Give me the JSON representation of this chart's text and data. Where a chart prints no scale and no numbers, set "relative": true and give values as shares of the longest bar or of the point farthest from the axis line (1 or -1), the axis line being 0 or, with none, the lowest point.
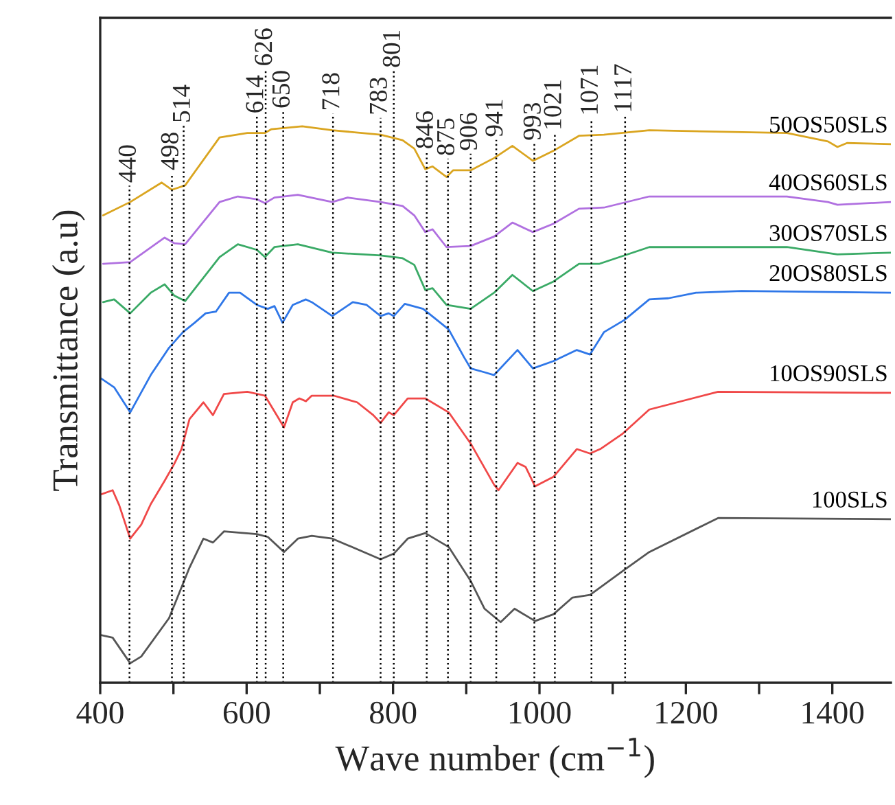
{
  "chart_data": {
    "type": "line",
    "relative": true,
    "xlabel": "Wave number (cm$^{−1}$)",
    "ylabel": "Transmittance (a.u)",
    "xlim": [
      400,
      1480
    ],
    "xticks": [
      400,
      {
        "value": 500,
        "label": null
      },
      600,
      {
        "value": 700,
        "label": null
      },
      800,
      {
        "value": 900,
        "label": null
      },
      1000,
      {
        "value": 1100,
        "label": null
      },
      1200,
      {
        "value": 1300,
        "label": null
      },
      1400
    ],
    "tick_labels": "x",
    "grid": false,
    "marker": "none",
    "line_style": "solid",
    "ref_lines": [
      {
        "axis": "x",
        "value": 440,
        "label": "440",
        "line_style": "dotted"
      },
      {
        "axis": "x",
        "value": 498,
        "label": "498",
        "line_style": "dotted"
      },
      {
        "axis": "x",
        "value": 514,
        "label": "514",
        "line_style": "dotted"
      },
      {
        "axis": "x",
        "value": 614,
        "label": "614",
        "line_style": "dotted"
      },
      {
        "axis": "x",
        "value": 626,
        "label": "626",
        "line_style": "dotted"
      },
      {
        "axis": "x",
        "value": 650,
        "label": "650",
        "line_style": "dotted"
      },
      {
        "axis": "x",
        "value": 718,
        "label": "718",
        "line_style": "dotted"
      },
      {
        "axis": "x",
        "value": 783,
        "label": "783",
        "line_style": "dotted"
      },
      {
        "axis": "x",
        "value": 801,
        "label": "801",
        "line_style": "dotted"
      },
      {
        "axis": "x",
        "value": 846,
        "label": "846",
        "line_style": "dotted"
      },
      {
        "axis": "x",
        "value": 875,
        "label": "875",
        "line_style": "dotted"
      },
      {
        "axis": "x",
        "value": 906,
        "label": "906",
        "line_style": "dotted"
      },
      {
        "axis": "x",
        "value": 941,
        "label": "941",
        "line_style": "dotted"
      },
      {
        "axis": "x",
        "value": 993,
        "label": "993",
        "line_style": "dotted"
      },
      {
        "axis": "x",
        "value": 1021,
        "label": "1021",
        "line_style": "dotted"
      },
      {
        "axis": "x",
        "value": 1071,
        "label": "1071",
        "line_style": "dotted"
      },
      {
        "axis": "x",
        "value": 1117,
        "label": "1117",
        "line_style": "dotted"
      }
    ],
    "series": [
      {
        "name": "50OS50SLS",
        "color": "#daa520",
        "x": [
          404,
          441,
          484,
          498,
          516,
          563,
          601,
          625,
          634,
          676,
          717,
          783,
          813,
          829,
          844,
          854,
          873,
          882,
          906,
          938,
          963,
          991,
          1019,
          1054,
          1088,
          1150,
          1338,
          1394,
          1407,
          1420,
          1480
        ],
        "values": [
          0.84,
          0.864,
          0.899,
          0.886,
          0.894,
          0.98,
          0.988,
          0.988,
          0.995,
          1.0,
          0.993,
          0.985,
          0.975,
          0.96,
          0.923,
          0.928,
          0.909,
          0.921,
          0.921,
          0.943,
          0.965,
          0.938,
          0.956,
          0.983,
          0.985,
          0.993,
          0.988,
          0.973,
          0.963,
          0.97,
          0.968
        ]
      },
      {
        "name": "40OS60SLS",
        "color": "#b070e0",
        "x": [
          404,
          441,
          488,
          501,
          516,
          563,
          588,
          614,
          625,
          638,
          670,
          717,
          738,
          783,
          813,
          829,
          844,
          854,
          873,
          906,
          938,
          963,
          991,
          1019,
          1054,
          1088,
          1150,
          1338,
          1394,
          1407,
          1480
        ],
        "values": [
          0.753,
          0.756,
          0.8,
          0.79,
          0.788,
          0.864,
          0.874,
          0.869,
          0.862,
          0.872,
          0.877,
          0.864,
          0.872,
          0.864,
          0.857,
          0.84,
          0.81,
          0.815,
          0.783,
          0.785,
          0.802,
          0.827,
          0.81,
          0.825,
          0.852,
          0.854,
          0.874,
          0.874,
          0.864,
          0.859,
          0.864
        ]
      },
      {
        "name": "30OS70SLS",
        "color": "#3aaa66",
        "x": [
          404,
          419,
          441,
          469,
          488,
          501,
          516,
          563,
          588,
          614,
          625,
          638,
          670,
          717,
          783,
          813,
          829,
          844,
          854,
          873,
          906,
          938,
          963,
          991,
          1019,
          1054,
          1082,
          1150,
          1338,
          1407,
          1480
        ],
        "values": [
          0.684,
          0.689,
          0.664,
          0.701,
          0.716,
          0.696,
          0.686,
          0.765,
          0.788,
          0.778,
          0.765,
          0.783,
          0.788,
          0.773,
          0.768,
          0.763,
          0.751,
          0.706,
          0.709,
          0.679,
          0.672,
          0.701,
          0.733,
          0.704,
          0.721,
          0.753,
          0.753,
          0.783,
          0.783,
          0.77,
          0.773
        ]
      },
      {
        "name": "20OS80SLS",
        "color": "#2f77e8",
        "x": [
          400,
          419,
          441,
          469,
          494,
          513,
          529,
          544,
          558,
          576,
          591,
          614,
          629,
          638,
          649,
          663,
          681,
          689,
          717,
          745,
          764,
          783,
          794,
          801,
          816,
          841,
          876,
          897,
          906,
          925,
          938,
          970,
          991,
          1019,
          1051,
          1069,
          1088,
          1116,
          1150,
          1176,
          1214,
          1276,
          1480
        ],
        "values": [
          0.548,
          0.531,
          0.486,
          0.553,
          0.602,
          0.63,
          0.647,
          0.664,
          0.667,
          0.701,
          0.701,
          0.679,
          0.672,
          0.677,
          0.647,
          0.679,
          0.689,
          0.684,
          0.659,
          0.684,
          0.679,
          0.659,
          0.664,
          0.659,
          0.681,
          0.672,
          0.635,
          0.585,
          0.565,
          0.558,
          0.553,
          0.598,
          0.565,
          0.578,
          0.598,
          0.59,
          0.63,
          0.652,
          0.689,
          0.691,
          0.701,
          0.704,
          0.701
        ]
      },
      {
        "name": "10OS90SLS",
        "color": "#f04848",
        "x": [
          400,
          417,
          426,
          441,
          456,
          469,
          488,
          501,
          511,
          522,
          541,
          554,
          569,
          601,
          625,
          642,
          651,
          663,
          672,
          681,
          689,
          719,
          751,
          773,
          783,
          794,
          801,
          820,
          844,
          876,
          906,
          938,
          944,
          970,
          981,
          994,
          1019,
          1051,
          1069,
          1083,
          1113,
          1150,
          1244,
          1480
        ],
        "values": [
          0.338,
          0.346,
          0.319,
          0.259,
          0.284,
          0.321,
          0.363,
          0.393,
          0.42,
          0.474,
          0.504,
          0.481,
          0.519,
          0.523,
          0.516,
          0.479,
          0.459,
          0.504,
          0.511,
          0.506,
          0.516,
          0.516,
          0.504,
          0.481,
          0.467,
          0.486,
          0.481,
          0.511,
          0.511,
          0.486,
          0.43,
          0.356,
          0.346,
          0.395,
          0.388,
          0.353,
          0.37,
          0.42,
          0.412,
          0.42,
          0.447,
          0.491,
          0.523,
          0.521
        ]
      },
      {
        "name": "100SLS",
        "color": "#555555",
        "x": [
          400,
          417,
          441,
          456,
          494,
          522,
          541,
          554,
          569,
          614,
          629,
          651,
          670,
          689,
          717,
          783,
          801,
          820,
          844,
          876,
          906,
          925,
          947,
          966,
          994,
          1019,
          1045,
          1069,
          1113,
          1150,
          1244,
          1480
        ],
        "values": [
          0.086,
          0.081,
          0.035,
          0.047,
          0.116,
          0.207,
          0.259,
          0.252,
          0.272,
          0.267,
          0.262,
          0.235,
          0.259,
          0.264,
          0.259,
          0.222,
          0.232,
          0.259,
          0.269,
          0.244,
          0.183,
          0.133,
          0.109,
          0.133,
          0.111,
          0.123,
          0.153,
          0.158,
          0.2,
          0.235,
          0.296,
          0.294
        ]
      }
    ]
  }
}
